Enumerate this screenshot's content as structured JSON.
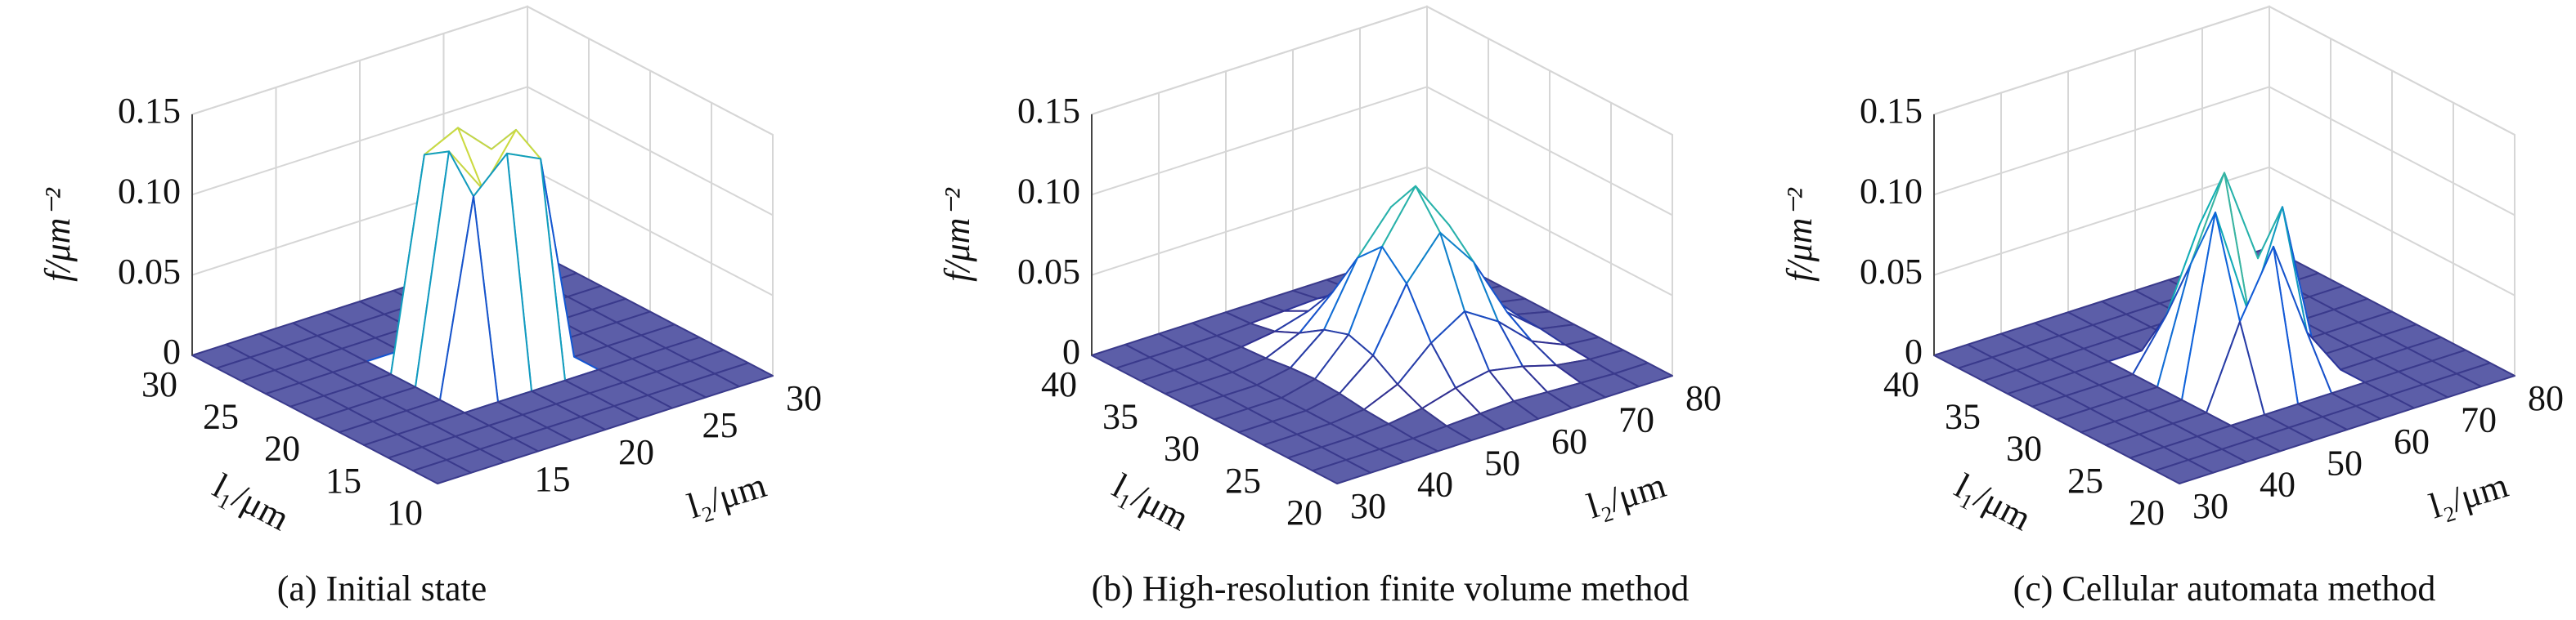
{
  "chart_data": [
    {
      "type": "surface",
      "title": "(a) Initial state",
      "xlabel": "l₂/μm",
      "ylabel": "l₁/μm",
      "zlabel": "f/μm⁻²",
      "x": [
        10,
        12,
        14,
        16,
        18,
        20,
        22,
        24,
        26,
        28,
        30
      ],
      "y": [
        10,
        12,
        14,
        16,
        18,
        20,
        22,
        24,
        26,
        28,
        30
      ],
      "z": [
        [
          0,
          0,
          0,
          0,
          0,
          0,
          0,
          0,
          0,
          0,
          0
        ],
        [
          0,
          0,
          0,
          0,
          0,
          0,
          0,
          0,
          0,
          0,
          0
        ],
        [
          0,
          0,
          0,
          0,
          0,
          0,
          0,
          0,
          0,
          0,
          0
        ],
        [
          0,
          0,
          0,
          0,
          0,
          0,
          0,
          0,
          0,
          0,
          0
        ],
        [
          0,
          0,
          0,
          0,
          0.12,
          0.14,
          0.13,
          0,
          0,
          0,
          0
        ],
        [
          0,
          0,
          0,
          0,
          0.14,
          0.11,
          0.14,
          0,
          0,
          0,
          0
        ],
        [
          0,
          0,
          0,
          0,
          0.13,
          0.14,
          0.12,
          0,
          0,
          0,
          0
        ],
        [
          0,
          0,
          0,
          0,
          0,
          0,
          0,
          0,
          0,
          0,
          0
        ],
        [
          0,
          0,
          0,
          0,
          0,
          0,
          0,
          0,
          0,
          0,
          0
        ],
        [
          0,
          0,
          0,
          0,
          0,
          0,
          0,
          0,
          0,
          0,
          0
        ],
        [
          0,
          0,
          0,
          0,
          0,
          0,
          0,
          0,
          0,
          0,
          0
        ]
      ],
      "xlim": [
        10,
        30
      ],
      "ylim": [
        10,
        30
      ],
      "zlim": [
        0,
        0.15
      ],
      "xticks": [
        15,
        20,
        25,
        30
      ],
      "yticks": [
        10,
        15,
        20,
        25,
        30
      ],
      "zticks": [
        0,
        0.05,
        {
          "value": 0.1,
          "label": "0.10"
        },
        0.15
      ],
      "grid": true
    },
    {
      "type": "surface",
      "title": "(b) High-resolution finite volume method",
      "xlabel": "l₂/μm",
      "ylabel": "l₁/μm",
      "zlabel": "f/μm⁻²",
      "x": [
        30,
        35,
        40,
        45,
        50,
        55,
        60,
        65,
        70,
        75,
        80
      ],
      "y": [
        20,
        22,
        24,
        26,
        28,
        30,
        32,
        34,
        36,
        38,
        40
      ],
      "z": [
        [
          0,
          0,
          0,
          0,
          0,
          0,
          0,
          0,
          0,
          0,
          0
        ],
        [
          0,
          0,
          0,
          0,
          0.001,
          0.002,
          0.003,
          0.002,
          0.001,
          0,
          0
        ],
        [
          0,
          0,
          0,
          0.001,
          0.004,
          0.01,
          0.014,
          0.01,
          0.004,
          0.001,
          0
        ],
        [
          0,
          0,
          0,
          0.002,
          0.011,
          0.03,
          0.043,
          0.03,
          0.011,
          0.002,
          0
        ],
        [
          0,
          0,
          0,
          0.004,
          0.021,
          0.059,
          0.084,
          0.059,
          0.021,
          0.004,
          0
        ],
        [
          0,
          0,
          0,
          0.005,
          0.026,
          0.074,
          0.105,
          0.074,
          0.026,
          0.005,
          0
        ],
        [
          0,
          0,
          0,
          0.004,
          0.021,
          0.059,
          0.084,
          0.059,
          0.021,
          0.004,
          0
        ],
        [
          0,
          0,
          0,
          0.002,
          0.011,
          0.03,
          0.043,
          0.03,
          0.011,
          0.002,
          0
        ],
        [
          0,
          0,
          0,
          0.001,
          0.004,
          0.01,
          0.014,
          0.01,
          0.004,
          0.001,
          0
        ],
        [
          0,
          0,
          0,
          0,
          0.001,
          0.002,
          0.003,
          0.002,
          0.001,
          0,
          0
        ],
        [
          0,
          0,
          0,
          0,
          0,
          0,
          0,
          0,
          0,
          0,
          0
        ]
      ],
      "xlim": [
        30,
        80
      ],
      "ylim": [
        20,
        40
      ],
      "zlim": [
        0,
        0.15
      ],
      "xticks": [
        30,
        40,
        50,
        60,
        70,
        80
      ],
      "yticks": [
        20,
        25,
        30,
        35,
        40
      ],
      "zticks": [
        0,
        0.05,
        {
          "value": 0.1,
          "label": "0.10"
        },
        0.15
      ],
      "grid": true
    },
    {
      "type": "surface",
      "title": "(c) Cellular automata method",
      "xlabel": "l₂/μm",
      "ylabel": "l₁/μm",
      "zlabel": "f/μm⁻²",
      "x": [
        30,
        35,
        40,
        45,
        50,
        55,
        60,
        65,
        70,
        75,
        80
      ],
      "y": [
        20,
        22,
        24,
        26,
        28,
        30,
        32,
        34,
        36,
        38,
        40
      ],
      "z": [
        [
          0,
          0,
          0,
          0,
          0,
          0,
          0,
          0,
          0,
          0,
          0
        ],
        [
          0,
          0,
          0,
          0,
          0,
          0,
          0,
          0,
          0,
          0,
          0
        ],
        [
          0,
          0,
          0,
          0,
          0,
          0,
          0,
          0,
          0,
          0,
          0
        ],
        [
          0,
          0,
          0,
          0,
          0.05,
          0.09,
          0.03,
          0,
          0,
          0,
          0
        ],
        [
          0,
          0,
          0,
          0,
          0.11,
          0.04,
          0.1,
          0,
          0,
          0,
          0
        ],
        [
          0,
          0,
          0,
          0,
          0.07,
          0.12,
          0.06,
          0,
          0,
          0,
          0
        ],
        [
          0,
          0,
          0,
          0,
          0.03,
          0.08,
          0.09,
          0,
          0,
          0,
          0
        ],
        [
          0,
          0,
          0,
          0,
          0,
          0,
          0,
          0,
          0,
          0,
          0
        ],
        [
          0,
          0,
          0,
          0,
          0,
          0,
          0,
          0,
          0,
          0,
          0
        ],
        [
          0,
          0,
          0,
          0,
          0,
          0,
          0,
          0,
          0,
          0,
          0
        ],
        [
          0,
          0,
          0,
          0,
          0,
          0,
          0,
          0,
          0,
          0,
          0
        ]
      ],
      "xlim": [
        30,
        80
      ],
      "ylim": [
        20,
        40
      ],
      "zlim": [
        0,
        0.15
      ],
      "xticks": [
        30,
        40,
        50,
        60,
        70,
        80
      ],
      "yticks": [
        20,
        25,
        30,
        35,
        40
      ],
      "zticks": [
        0,
        0.05,
        {
          "value": 0.1,
          "label": "0.10"
        },
        0.15
      ],
      "grid": true
    }
  ]
}
